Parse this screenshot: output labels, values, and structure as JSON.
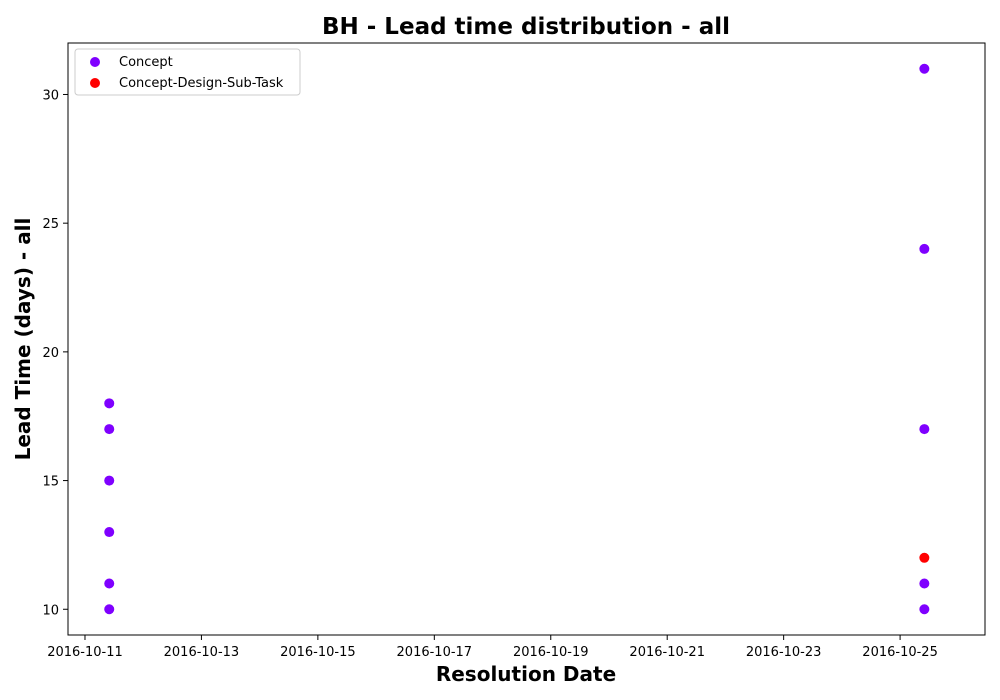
{
  "chart_data": {
    "type": "scatter",
    "title": "BH - Lead time distribution - all",
    "xlabel": "Resolution Date",
    "ylabel": "Lead Time (days) - all",
    "x_ticks": [
      "2016-10-11",
      "2016-10-13",
      "2016-10-15",
      "2016-10-17",
      "2016-10-19",
      "2016-10-21",
      "2016-10-23",
      "2016-10-25"
    ],
    "y_ticks": [
      "10",
      "15",
      "20",
      "25",
      "30"
    ],
    "xlim": [
      "2016-10-10 17:00",
      "2016-10-26 11:00"
    ],
    "ylim": [
      9,
      32
    ],
    "grid": false,
    "legend_position": "top-left",
    "series": [
      {
        "name": "Concept",
        "color": "#7f00ff",
        "points": [
          {
            "x": "2016-10-11 10:00",
            "y": 18
          },
          {
            "x": "2016-10-11 10:00",
            "y": 17
          },
          {
            "x": "2016-10-11 10:00",
            "y": 15
          },
          {
            "x": "2016-10-11 10:00",
            "y": 13
          },
          {
            "x": "2016-10-11 10:00",
            "y": 11
          },
          {
            "x": "2016-10-11 10:00",
            "y": 10
          },
          {
            "x": "2016-10-25 10:00",
            "y": 31
          },
          {
            "x": "2016-10-25 10:00",
            "y": 24
          },
          {
            "x": "2016-10-25 10:00",
            "y": 17
          },
          {
            "x": "2016-10-25 10:00",
            "y": 11
          },
          {
            "x": "2016-10-25 10:00",
            "y": 10
          }
        ]
      },
      {
        "name": "Concept-Design-Sub-Task",
        "color": "#ff0000",
        "points": [
          {
            "x": "2016-10-25 10:00",
            "y": 12
          }
        ]
      }
    ]
  }
}
